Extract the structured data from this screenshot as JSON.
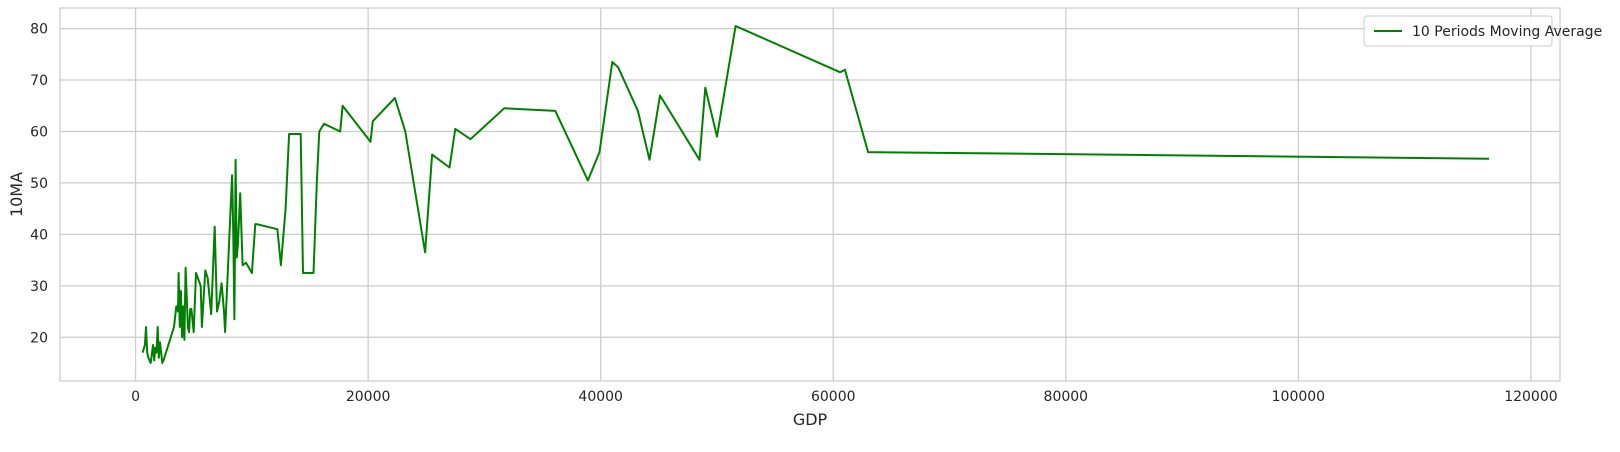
{
  "chart_data": {
    "type": "line",
    "xlabel": "GDP",
    "ylabel": "10MA",
    "xlim": [
      -6500,
      122500
    ],
    "ylim": [
      11.5,
      84
    ],
    "x_ticks": [
      0,
      20000,
      40000,
      60000,
      80000,
      100000,
      120000
    ],
    "y_ticks": [
      20,
      30,
      40,
      50,
      60,
      70,
      80
    ],
    "grid": true,
    "legend_position": "top-right",
    "series": [
      {
        "name": "10 Periods Moving Average",
        "color": "#008000",
        "x": [
          600,
          800,
          900,
          1000,
          1100,
          1300,
          1500,
          1600,
          1700,
          1800,
          1900,
          2000,
          2100,
          2300,
          2400,
          3300,
          3500,
          3600,
          3650,
          3700,
          3800,
          3900,
          4000,
          4100,
          4200,
          4300,
          4500,
          4600,
          4700,
          4800,
          5000,
          5200,
          5600,
          5700,
          6000,
          6200,
          6500,
          6800,
          7000,
          7200,
          7400,
          7600,
          7700,
          8300,
          8400,
          8500,
          8600,
          8700,
          8800,
          9000,
          9200,
          9500,
          10000,
          10300,
          10400,
          12200,
          12500,
          12900,
          13200,
          14200,
          14400,
          15300,
          15600,
          15800,
          16200,
          17600,
          17800,
          20200,
          20400,
          22300,
          23200,
          24900,
          25500,
          27000,
          27500,
          28800,
          31700,
          36100,
          38900,
          39900,
          41000,
          41500,
          43200,
          44200,
          45100,
          48500,
          49000,
          50000,
          51600,
          60600,
          61000,
          63000,
          116400
        ],
        "values": [
          17,
          18.5,
          22,
          17,
          16,
          15,
          18.5,
          15.5,
          18,
          17,
          22,
          16,
          19,
          15,
          15.5,
          22,
          26,
          25.5,
          25,
          32.5,
          22,
          29,
          20,
          26,
          19.5,
          33.5,
          22,
          21,
          25.5,
          25.5,
          21,
          32.5,
          30,
          22,
          33,
          31.5,
          24.5,
          41.5,
          25,
          27,
          30.5,
          25,
          21,
          51.5,
          40,
          23.5,
          54.5,
          35.5,
          38,
          48,
          34,
          34.5,
          32.5,
          42,
          42,
          41,
          34,
          45,
          59.5,
          59.5,
          32.5,
          32.5,
          51,
          60,
          61.5,
          60,
          65,
          58,
          62,
          66.5,
          60,
          36.5,
          55.5,
          53,
          60.5,
          58.5,
          64.5,
          64,
          50.5,
          56,
          73.5,
          72.5,
          64,
          54.5,
          67,
          54.5,
          68.5,
          59,
          80.5,
          71.5,
          72,
          56,
          54.7
        ]
      }
    ]
  }
}
